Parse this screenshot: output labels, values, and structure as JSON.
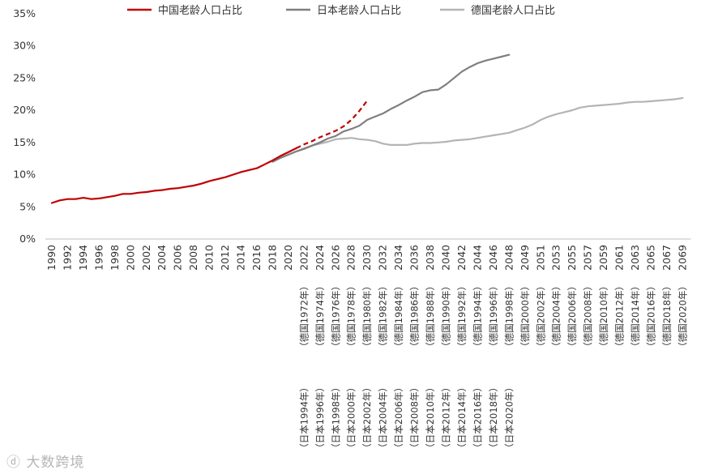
{
  "chart_data": {
    "type": "line",
    "title": "",
    "xlabel": "",
    "ylabel": "",
    "ylim": [
      0,
      35
    ],
    "y_ticks": [
      "0%",
      "5%",
      "10%",
      "15%",
      "20%",
      "25%",
      "30%",
      "35%"
    ],
    "grid": false,
    "legend_position": "top",
    "colors": {
      "china": "#c00000",
      "japan": "#7f7f7f",
      "germany": "#b4b4b4"
    },
    "categories": [
      "1990",
      "1992",
      "1994",
      "1996",
      "1998",
      "2000",
      "2002",
      "2004",
      "2006",
      "2008",
      "2010",
      "2012",
      "2014",
      "2016",
      "2018",
      "2020",
      "2022",
      "2024",
      "2026",
      "2028",
      "2030",
      "2032",
      "2034",
      "2036",
      "2038",
      "2040",
      "2042",
      "2044",
      "2046",
      "2048",
      "2049",
      "2051",
      "2053",
      "2055",
      "2057",
      "2059",
      "2061",
      "2063",
      "2065",
      "2067",
      "2069"
    ],
    "annotations": {
      "germany": [
        "（德国1972年）",
        "（德国1974年）",
        "（德国1976年）",
        "（德国1978年）",
        "（德国1980年）",
        "（德国1982年）",
        "（德国1984年）",
        "（德国1986年）",
        "（德国1988年）",
        "（德国1990年）",
        "（德国1992年）",
        "（德国1994年）",
        "（德国1996年）",
        "（德国1998年）",
        "（德国2000年）",
        "（德国2002年）",
        "（德国2004年）",
        "（德国2006年）",
        "（德国2008年）",
        "（德国2010年）",
        "（德国2012年）",
        "（德国2014年）",
        "（德国2016年）",
        "（德国2018年）",
        "（德国2020年）"
      ],
      "japan": [
        "（日本1994年）",
        "（日本1996年）",
        "（日本1998年）",
        "（日本2000年）",
        "（日本2002年）",
        "（日本2004年）",
        "（日本2006年）",
        "（日本2008年）",
        "（日本2010年）",
        "（日本2012年）",
        "（日本2014年）",
        "（日本2016年）",
        "（日本2018年）",
        "（日本2020年）"
      ]
    },
    "series": [
      {
        "name": "中国老龄人口占比",
        "key": "china",
        "points": [
          [
            0,
            5.6
          ],
          [
            0.5,
            6.0
          ],
          [
            1,
            6.2
          ],
          [
            1.5,
            6.2
          ],
          [
            2,
            6.4
          ],
          [
            2.5,
            6.2
          ],
          [
            3,
            6.3
          ],
          [
            3.5,
            6.5
          ],
          [
            4,
            6.7
          ],
          [
            4.5,
            7.0
          ],
          [
            5,
            7.0
          ],
          [
            5.5,
            7.2
          ],
          [
            6,
            7.3
          ],
          [
            6.5,
            7.5
          ],
          [
            7,
            7.6
          ],
          [
            7.5,
            7.8
          ],
          [
            8,
            7.9
          ],
          [
            8.5,
            8.1
          ],
          [
            9,
            8.3
          ],
          [
            9.5,
            8.6
          ],
          [
            10,
            9.0
          ],
          [
            10.5,
            9.3
          ],
          [
            11,
            9.6
          ],
          [
            11.5,
            10.0
          ],
          [
            12,
            10.4
          ],
          [
            12.5,
            10.7
          ],
          [
            13,
            11.0
          ],
          [
            13.5,
            11.6
          ],
          [
            14,
            12.2
          ],
          [
            14.5,
            12.9
          ],
          [
            15,
            13.5
          ],
          [
            15.5,
            14.1
          ]
        ],
        "projection": [
          [
            15.5,
            14.1
          ],
          [
            16,
            14.7
          ],
          [
            16.5,
            15.2
          ],
          [
            17,
            15.8
          ],
          [
            17.5,
            16.3
          ],
          [
            18,
            16.8
          ],
          [
            18.5,
            17.5
          ],
          [
            19,
            18.5
          ],
          [
            19.5,
            19.9
          ],
          [
            20,
            21.5
          ]
        ]
      },
      {
        "name": "日本老龄人口占比",
        "key": "japan",
        "points": [
          [
            14,
            12.0
          ],
          [
            14.5,
            12.6
          ],
          [
            15,
            13.1
          ],
          [
            15.5,
            13.6
          ],
          [
            16,
            14.0
          ],
          [
            16.5,
            14.5
          ],
          [
            17,
            15.0
          ],
          [
            17.5,
            15.6
          ],
          [
            18,
            16.0
          ],
          [
            18.5,
            16.7
          ],
          [
            19,
            17.1
          ],
          [
            19.5,
            17.6
          ],
          [
            20,
            18.5
          ],
          [
            20.5,
            19.0
          ],
          [
            21,
            19.5
          ],
          [
            21.5,
            20.2
          ],
          [
            22,
            20.8
          ],
          [
            22.5,
            21.5
          ],
          [
            23,
            22.1
          ],
          [
            23.5,
            22.8
          ],
          [
            24,
            23.1
          ],
          [
            24.5,
            23.2
          ],
          [
            25,
            24.0
          ],
          [
            25.5,
            25.0
          ],
          [
            26,
            26.0
          ],
          [
            26.5,
            26.7
          ],
          [
            27,
            27.3
          ],
          [
            27.5,
            27.7
          ],
          [
            28,
            28.0
          ],
          [
            28.5,
            28.3
          ],
          [
            29,
            28.6
          ]
        ]
      },
      {
        "name": "德国老龄人口占比",
        "key": "germany",
        "points": [
          [
            14,
            12.0
          ],
          [
            14.5,
            12.6
          ],
          [
            15,
            13.1
          ],
          [
            15.5,
            13.6
          ],
          [
            16,
            14.1
          ],
          [
            16.5,
            14.5
          ],
          [
            17,
            14.8
          ],
          [
            17.5,
            15.1
          ],
          [
            18,
            15.5
          ],
          [
            18.5,
            15.6
          ],
          [
            19,
            15.7
          ],
          [
            19.5,
            15.5
          ],
          [
            20,
            15.4
          ],
          [
            20.5,
            15.2
          ],
          [
            21,
            14.8
          ],
          [
            21.5,
            14.6
          ],
          [
            22,
            14.6
          ],
          [
            22.5,
            14.6
          ],
          [
            23,
            14.8
          ],
          [
            23.5,
            14.9
          ],
          [
            24,
            14.9
          ],
          [
            24.5,
            15.0
          ],
          [
            25,
            15.1
          ],
          [
            25.5,
            15.3
          ],
          [
            26,
            15.4
          ],
          [
            26.5,
            15.5
          ],
          [
            27,
            15.7
          ],
          [
            27.5,
            15.9
          ],
          [
            28,
            16.1
          ],
          [
            28.5,
            16.3
          ],
          [
            29,
            16.5
          ],
          [
            29.5,
            16.9
          ],
          [
            30,
            17.3
          ],
          [
            30.5,
            17.8
          ],
          [
            31,
            18.5
          ],
          [
            31.5,
            19.0
          ],
          [
            32,
            19.4
          ],
          [
            32.5,
            19.7
          ],
          [
            33,
            20.0
          ],
          [
            33.5,
            20.4
          ],
          [
            34,
            20.6
          ],
          [
            34.5,
            20.7
          ],
          [
            35,
            20.8
          ],
          [
            35.5,
            20.9
          ],
          [
            36,
            21.0
          ],
          [
            36.5,
            21.2
          ],
          [
            37,
            21.3
          ],
          [
            37.5,
            21.3
          ],
          [
            38,
            21.4
          ],
          [
            38.5,
            21.5
          ],
          [
            39,
            21.6
          ],
          [
            39.5,
            21.7
          ],
          [
            40,
            21.9
          ]
        ]
      }
    ]
  },
  "watermark": "大数跨境"
}
